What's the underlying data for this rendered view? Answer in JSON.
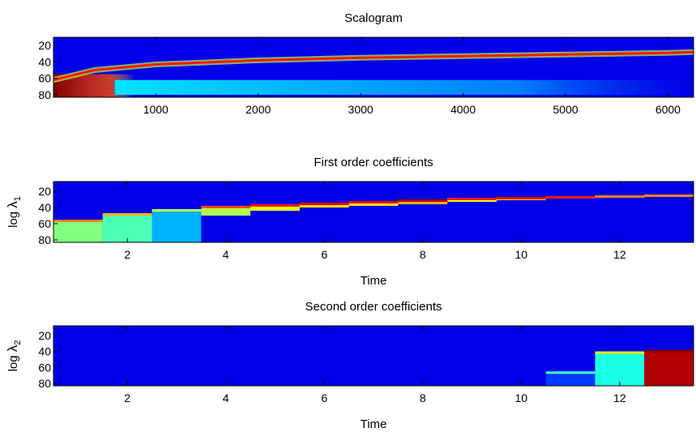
{
  "chart_data": [
    {
      "type": "heatmap",
      "title": "Scalogram",
      "xlabel": "",
      "ylabel": "",
      "xlim": [
        1,
        6250
      ],
      "ylim": [
        10,
        83
      ],
      "xticks": [
        1000,
        2000,
        3000,
        4000,
        5000,
        6000
      ],
      "xtick_labels": [
        "1000",
        "2000",
        "3000",
        "4000",
        "5000",
        "6000"
      ],
      "yticks": [
        20,
        40,
        60,
        80
      ],
      "ytick_labels": [
        "20",
        "40",
        "60",
        "80"
      ],
      "colormap": "jet",
      "background_value": 0.1,
      "ridge": {
        "x": [
          1,
          400,
          1000,
          2000,
          3000,
          4000,
          5000,
          6000,
          6250
        ],
        "y": [
          62,
          50,
          43,
          38,
          35,
          33,
          31,
          29,
          28
        ],
        "value": 0.85
      },
      "hotspots": [
        {
          "x": [
            1,
            800
          ],
          "y": [
            55,
            83
          ],
          "value": 1.0
        },
        {
          "x": [
            600,
            6250
          ],
          "y": [
            62,
            80
          ],
          "value": 0.35
        }
      ]
    },
    {
      "type": "heatmap",
      "title": "First order coefficients",
      "xlabel": "Time",
      "ylabel": "log λ₁",
      "ylabel_text": "log",
      "ylabel_symbol": "λ",
      "ylabel_subscript": "1",
      "xlim": [
        0.5,
        13.5
      ],
      "ylim": [
        8,
        83
      ],
      "xticks": [
        2,
        4,
        6,
        8,
        10,
        12
      ],
      "xtick_labels": [
        "2",
        "4",
        "6",
        "8",
        "10",
        "12"
      ],
      "yticks": [
        20,
        40,
        60,
        80
      ],
      "ytick_labels": [
        "20",
        "40",
        "60",
        "80"
      ],
      "colormap": "jet",
      "background_value": 0.1,
      "columns": [
        {
          "t": 1,
          "y": [
            55,
            83
          ],
          "value": 0.5
        },
        {
          "t": 2,
          "y": [
            47,
            83
          ],
          "value": 0.45
        },
        {
          "t": 3,
          "y": [
            42,
            83
          ],
          "value": 0.3
        },
        {
          "t": 4,
          "y": [
            38,
            50
          ],
          "value": 0.55
        },
        {
          "t": 5,
          "y": [
            36,
            44
          ],
          "value": 0.6
        },
        {
          "t": 6,
          "y": [
            34,
            40
          ],
          "value": 0.65
        },
        {
          "t": 7,
          "y": [
            32,
            38
          ],
          "value": 0.65
        },
        {
          "t": 8,
          "y": [
            30,
            36
          ],
          "value": 0.7
        },
        {
          "t": 9,
          "y": [
            28,
            33
          ],
          "value": 0.6
        },
        {
          "t": 10,
          "y": [
            27,
            31
          ],
          "value": 0.65
        },
        {
          "t": 11,
          "y": [
            26,
            29
          ],
          "value": 0.6
        },
        {
          "t": 12,
          "y": [
            25,
            28
          ],
          "value": 0.5
        },
        {
          "t": 13,
          "y": [
            24,
            27
          ],
          "value": 0.5
        }
      ]
    },
    {
      "type": "heatmap",
      "title": "Second order coefficients",
      "xlabel": "Time",
      "ylabel": "log λ₂",
      "ylabel_text": "log",
      "ylabel_symbol": "λ",
      "ylabel_subscript": "2",
      "xlim": [
        0.5,
        13.5
      ],
      "ylim": [
        8,
        83
      ],
      "xticks": [
        2,
        4,
        6,
        8,
        10,
        12
      ],
      "xtick_labels": [
        "2",
        "4",
        "6",
        "8",
        "10",
        "12"
      ],
      "yticks": [
        20,
        40,
        60,
        80
      ],
      "ytick_labels": [
        "20",
        "40",
        "60",
        "80"
      ],
      "colormap": "jet",
      "background_value": 0.1,
      "columns": [
        {
          "t": 11,
          "y": [
            65,
            83
          ],
          "value": 0.18
        },
        {
          "t": 12,
          "y": [
            40,
            83
          ],
          "value": 0.4
        },
        {
          "t": 13,
          "y": [
            38,
            83
          ],
          "value": 0.95
        }
      ]
    }
  ]
}
